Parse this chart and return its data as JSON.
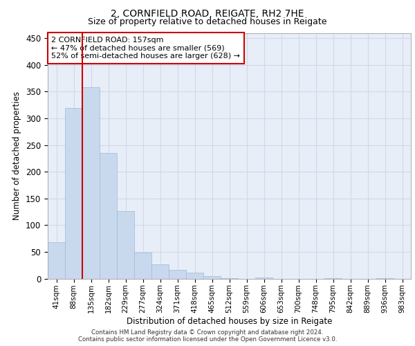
{
  "title1": "2, CORNFIELD ROAD, REIGATE, RH2 7HE",
  "title2": "Size of property relative to detached houses in Reigate",
  "xlabel": "Distribution of detached houses by size in Reigate",
  "ylabel": "Number of detached properties",
  "bar_labels": [
    "41sqm",
    "88sqm",
    "135sqm",
    "182sqm",
    "229sqm",
    "277sqm",
    "324sqm",
    "371sqm",
    "418sqm",
    "465sqm",
    "512sqm",
    "559sqm",
    "606sqm",
    "653sqm",
    "700sqm",
    "748sqm",
    "795sqm",
    "842sqm",
    "889sqm",
    "936sqm",
    "983sqm"
  ],
  "bar_values": [
    68,
    320,
    358,
    235,
    126,
    48,
    26,
    16,
    11,
    5,
    1,
    0,
    2,
    0,
    0,
    0,
    1,
    0,
    0,
    1,
    0
  ],
  "bar_color": "#c8d9ee",
  "bar_edge_color": "#a0b8d8",
  "vline_x": 1.5,
  "vline_color": "#cc0000",
  "annotation_text": "2 CORNFIELD ROAD: 157sqm\n← 47% of detached houses are smaller (569)\n52% of semi-detached houses are larger (628) →",
  "annotation_box_color": "#ffffff",
  "annotation_box_edge": "#cc0000",
  "grid_color": "#d0d8e8",
  "background_color": "#e8eef8",
  "ylim": [
    0,
    460
  ],
  "yticks": [
    0,
    50,
    100,
    150,
    200,
    250,
    300,
    350,
    400,
    450
  ],
  "footer_line1": "Contains HM Land Registry data © Crown copyright and database right 2024.",
  "footer_line2": "Contains public sector information licensed under the Open Government Licence v3.0."
}
